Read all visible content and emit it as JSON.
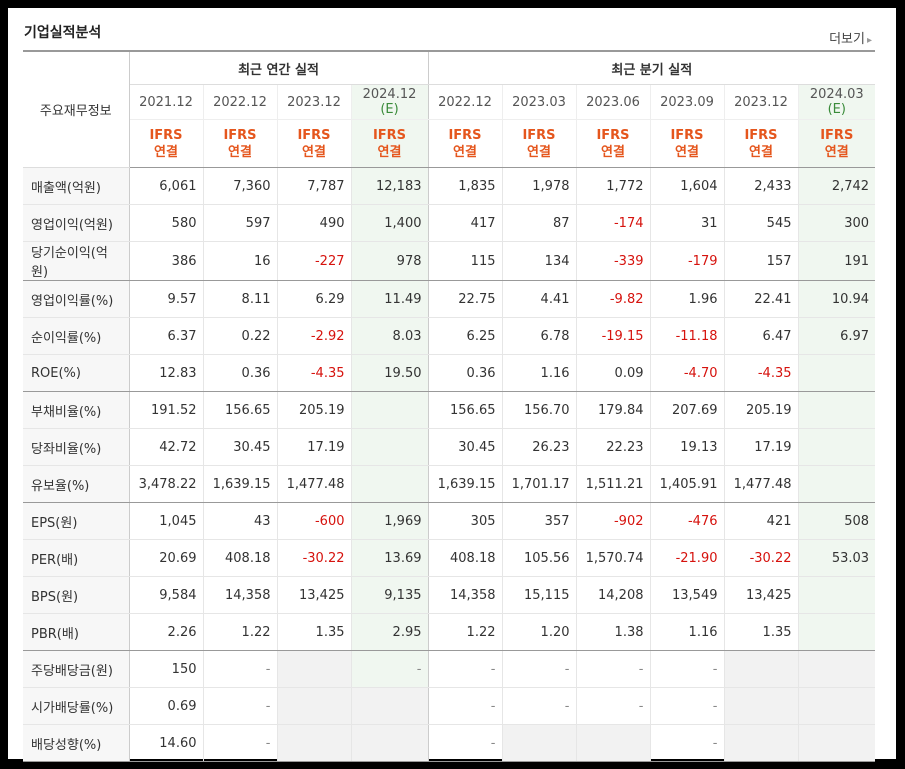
{
  "title": "기업실적분석",
  "more_label": "더보기",
  "header": {
    "row_label": "주요재무정보",
    "annual_group": "최근 연간 실적",
    "quarter_group": "최근 분기 실적",
    "periods": [
      "2021.12",
      "2022.12",
      "2023.12",
      "2024.12",
      "2022.12",
      "2023.03",
      "2023.06",
      "2023.09",
      "2023.12",
      "2024.03"
    ],
    "estimate_suffix": "(E)",
    "standard": [
      "IFRS",
      "IFRS",
      "IFRS",
      "IFRS",
      "IFRS",
      "IFRS",
      "IFRS",
      "IFRS",
      "IFRS",
      "IFRS"
    ],
    "basis": [
      "연결",
      "연결",
      "연결",
      "연결",
      "연결",
      "연결",
      "연결",
      "연결",
      "연결",
      "연결"
    ]
  },
  "rows": [
    {
      "label": "매출액(억원)",
      "values": [
        "6,061",
        "7,360",
        "7,787",
        "12,183",
        "1,835",
        "1,978",
        "1,772",
        "1,604",
        "2,433",
        "2,742"
      ]
    },
    {
      "label": "영업이익(억원)",
      "values": [
        "580",
        "597",
        "490",
        "1,400",
        "417",
        "87",
        "-174",
        "31",
        "545",
        "300"
      ]
    },
    {
      "label": "당기순이익(억원)",
      "values": [
        "386",
        "16",
        "-227",
        "978",
        "115",
        "134",
        "-339",
        "-179",
        "157",
        "191"
      ]
    },
    {
      "label": "영업이익률(%)",
      "values": [
        "9.57",
        "8.11",
        "6.29",
        "11.49",
        "22.75",
        "4.41",
        "-9.82",
        "1.96",
        "22.41",
        "10.94"
      ]
    },
    {
      "label": "순이익률(%)",
      "values": [
        "6.37",
        "0.22",
        "-2.92",
        "8.03",
        "6.25",
        "6.78",
        "-19.15",
        "-11.18",
        "6.47",
        "6.97"
      ]
    },
    {
      "label": "ROE(%)",
      "values": [
        "12.83",
        "0.36",
        "-4.35",
        "19.50",
        "0.36",
        "1.16",
        "0.09",
        "-4.70",
        "-4.35",
        ""
      ]
    },
    {
      "label": "부채비율(%)",
      "values": [
        "191.52",
        "156.65",
        "205.19",
        "",
        "156.65",
        "156.70",
        "179.84",
        "207.69",
        "205.19",
        ""
      ]
    },
    {
      "label": "당좌비율(%)",
      "values": [
        "42.72",
        "30.45",
        "17.19",
        "",
        "30.45",
        "26.23",
        "22.23",
        "19.13",
        "17.19",
        ""
      ]
    },
    {
      "label": "유보율(%)",
      "values": [
        "3,478.22",
        "1,639.15",
        "1,477.48",
        "",
        "1,639.15",
        "1,701.17",
        "1,511.21",
        "1,405.91",
        "1,477.48",
        ""
      ]
    },
    {
      "label": "EPS(원)",
      "values": [
        "1,045",
        "43",
        "-600",
        "1,969",
        "305",
        "357",
        "-902",
        "-476",
        "421",
        "508"
      ]
    },
    {
      "label": "PER(배)",
      "values": [
        "20.69",
        "408.18",
        "-30.22",
        "13.69",
        "408.18",
        "105.56",
        "1,570.74",
        "-21.90",
        "-30.22",
        "53.03"
      ]
    },
    {
      "label": "BPS(원)",
      "values": [
        "9,584",
        "14,358",
        "13,425",
        "9,135",
        "14,358",
        "15,115",
        "14,208",
        "13,549",
        "13,425",
        ""
      ]
    },
    {
      "label": "PBR(배)",
      "values": [
        "2.26",
        "1.22",
        "1.35",
        "2.95",
        "1.22",
        "1.20",
        "1.38",
        "1.16",
        "1.35",
        ""
      ]
    },
    {
      "label": "주당배당금(원)",
      "values": [
        "150",
        "-",
        "",
        "-",
        "-",
        "-",
        "-",
        "-",
        "",
        ""
      ]
    },
    {
      "label": "시가배당률(%)",
      "values": [
        "0.69",
        "-",
        "",
        "",
        "-",
        "-",
        "-",
        "-",
        "",
        ""
      ]
    },
    {
      "label": "배당성향(%)",
      "values": [
        "14.60",
        "-",
        "",
        "",
        "-",
        "",
        "",
        "-",
        "",
        ""
      ]
    }
  ],
  "colors": {
    "negative": "#d6120d",
    "ifrs": "#e5561d",
    "estimate": "#3a8b3a"
  }
}
